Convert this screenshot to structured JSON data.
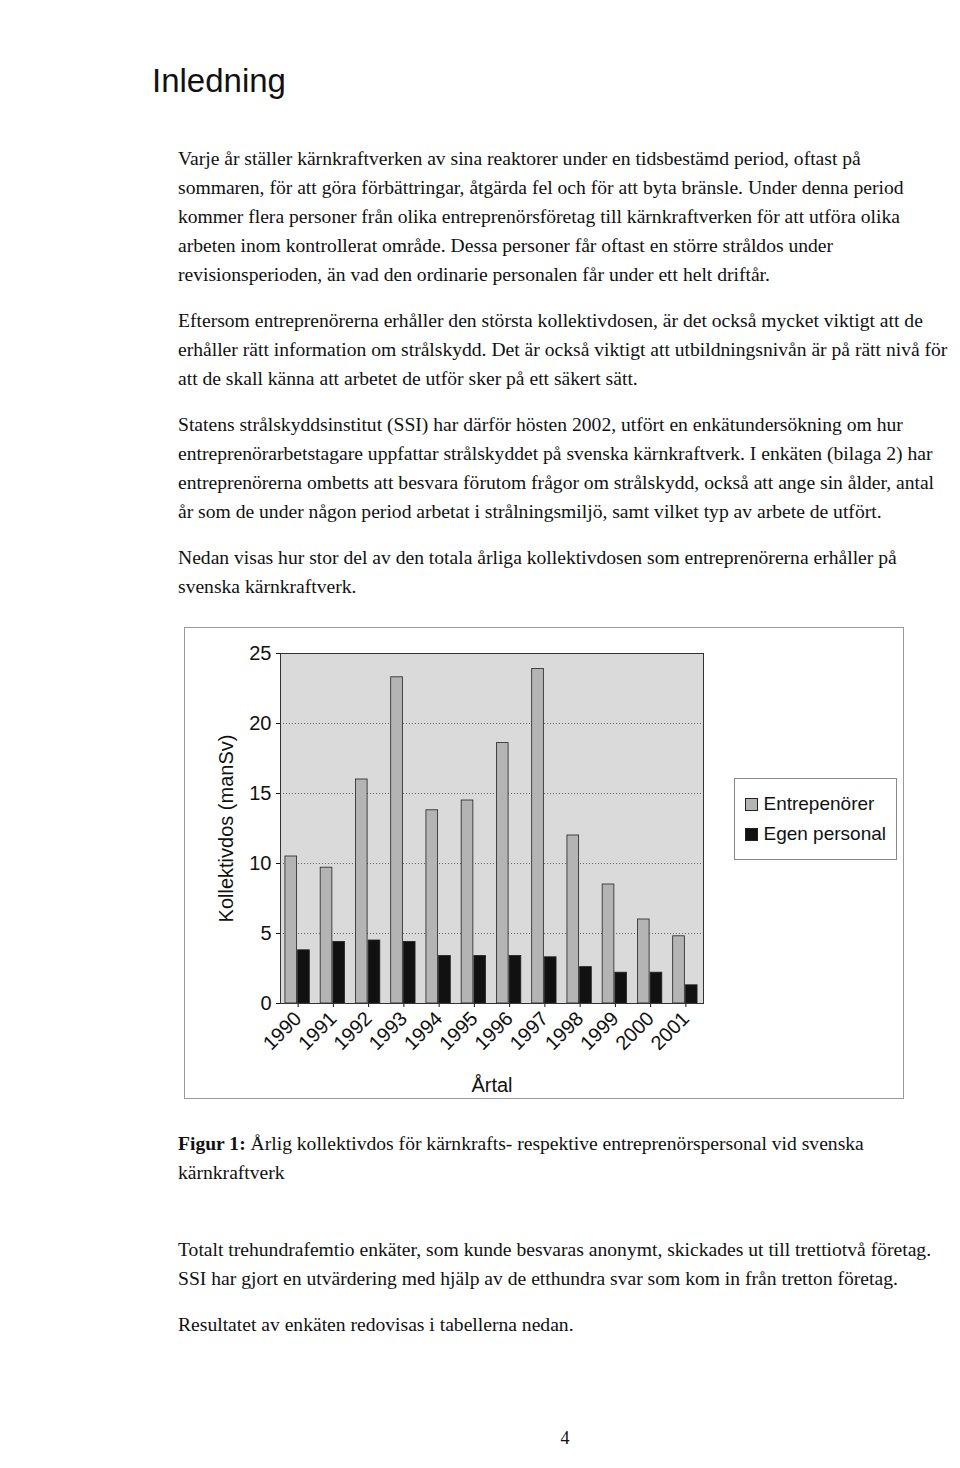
{
  "heading": "Inledning",
  "paragraphs_before": [
    "Varje år ställer kärnkraftverken av sina reaktorer under en tidsbestämd period, oftast på sommaren, för att göra förbättringar, åtgärda fel och för att byta bränsle. Under denna period kommer flera personer från olika entreprenörsföretag till kärnkraftverken för att utföra olika arbeten inom kontrollerat område. Dessa personer får oftast en större stråldos under revisionsperioden, än vad den ordinarie personalen får under ett helt driftår.",
    "Eftersom entreprenörerna erhåller den största kollektivdosen, är det också mycket viktigt att de erhåller rätt information om strålskydd. Det är också viktigt att utbildningsnivån är på rätt nivå för att de skall känna att arbetet de utför sker på ett säkert sätt.",
    "Statens strålskyddsinstitut (SSI) har därför hösten 2002, utfört en enkätundersökning om hur entreprenörarbetstagare uppfattar strålskyddet på svenska kärnkraftverk. I enkäten (bilaga 2) har entreprenörerna ombetts att besvara förutom frågor om strålskydd, också att ange sin ålder, antal år som de under någon period arbetat i strålningsmiljö, samt vilket typ av arbete de utfört.",
    "Nedan visas hur stor del av den totala årliga kollektivdosen som entreprenörerna erhåller på svenska kärnkraftverk."
  ],
  "chart_data": {
    "type": "bar",
    "categories": [
      "1990",
      "1991",
      "1992",
      "1993",
      "1994",
      "1995",
      "1996",
      "1997",
      "1998",
      "1999",
      "2000",
      "2001"
    ],
    "series": [
      {
        "name": "Entrepenörer",
        "color": "#b4b4b4",
        "values": [
          10.5,
          9.7,
          16.0,
          23.3,
          13.8,
          14.5,
          18.6,
          23.9,
          12.0,
          8.5,
          6.0,
          4.8
        ]
      },
      {
        "name": "Egen personal",
        "color": "#111111",
        "values": [
          3.8,
          4.4,
          4.5,
          4.4,
          3.4,
          3.4,
          3.4,
          3.3,
          2.6,
          2.2,
          2.2,
          1.3
        ]
      }
    ],
    "xlabel": "Årtal",
    "ylabel": "Kollektivdos (manSv)",
    "ylim": [
      0,
      25
    ],
    "yticks": [
      0,
      5,
      10,
      15,
      20,
      25
    ],
    "grid": true,
    "legend": "right"
  },
  "caption": {
    "label": "Figur 1:",
    "text": "Årlig kollektivdos för kärnkrafts- respektive entreprenörspersonal vid svenska kärnkraftverk"
  },
  "paragraphs_after": [
    "Totalt trehundrafemtio enkäter, som kunde besvaras anonymt, skickades ut till trettiotvå företag. SSI har gjort en utvärdering med hjälp av de etthundra svar som kom in från tretton företag.",
    "Resultatet av enkäten redovisas i tabellerna nedan."
  ],
  "page_number": "4"
}
